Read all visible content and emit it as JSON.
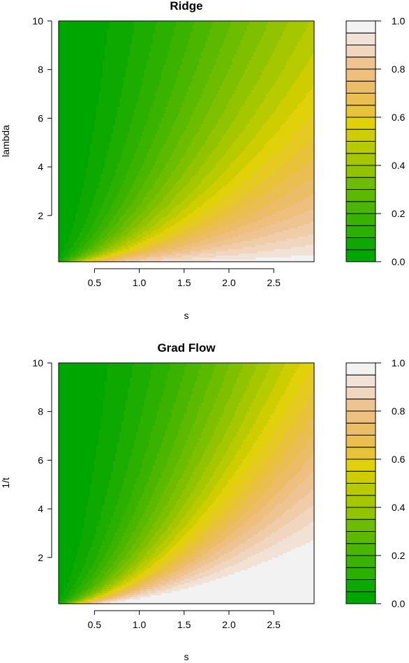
{
  "chart_data": [
    {
      "type": "heatmap",
      "title": "Ridge",
      "xlabel": "s",
      "ylabel": "lambda",
      "xlim": [
        0.1,
        2.95
      ],
      "ylim": [
        0.1,
        10
      ],
      "xticks": [
        "0.5",
        "1.0",
        "1.5",
        "2.0",
        "2.5"
      ],
      "yticks": [
        "2",
        "4",
        "6",
        "8",
        "10"
      ],
      "function": "s^2/(s^2+lambda)",
      "colorbar": {
        "ticks": [
          "0.0",
          "0.2",
          "0.4",
          "0.6",
          "0.8",
          "1.0"
        ],
        "range": [
          0,
          1
        ],
        "levels": 20
      }
    },
    {
      "type": "heatmap",
      "title": "Grad Flow",
      "xlabel": "s",
      "ylabel": "1/t",
      "xlim": [
        0.1,
        2.95
      ],
      "ylim": [
        0.1,
        10
      ],
      "xticks": [
        "0.5",
        "1.0",
        "1.5",
        "2.0",
        "2.5"
      ],
      "yticks": [
        "2",
        "4",
        "6",
        "8",
        "10"
      ],
      "function": "1-exp(-s^2/(1/t))",
      "colorbar": {
        "ticks": [
          "0.0",
          "0.2",
          "0.4",
          "0.6",
          "0.8",
          "1.0"
        ],
        "range": [
          0,
          1
        ],
        "levels": 20
      }
    }
  ],
  "palette": [
    "#00A600",
    "#0EA900",
    "#1CAD00",
    "#2BB000",
    "#3AB300",
    "#4AB600",
    "#5BBA00",
    "#6CBD00",
    "#7EC000",
    "#91C300",
    "#A4C700",
    "#B8CA00",
    "#CDCD00",
    "#E0D10A",
    "#E6CA21",
    "#E8C33A",
    "#EABE51",
    "#ECBD67",
    "#EEBF7D",
    "#EFC493",
    "#F0CCA9",
    "#F1D6BF",
    "#F2E2D5",
    "#F2F2F2"
  ]
}
